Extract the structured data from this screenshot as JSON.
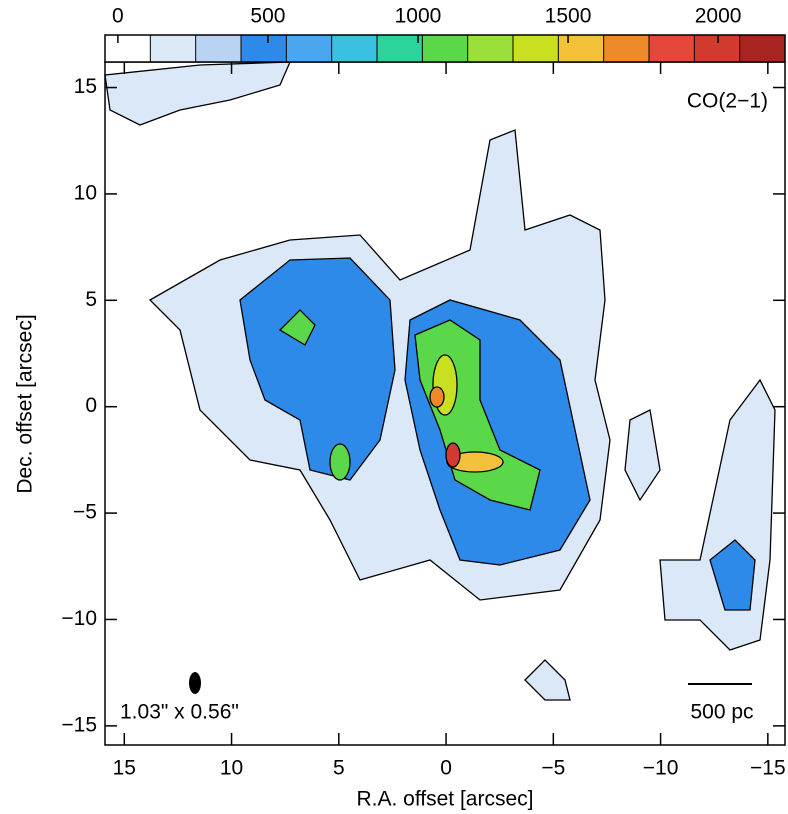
{
  "chart_data": {
    "type": "contour-map",
    "xlabel": "R.A. offset [arcsec]",
    "ylabel": "Dec. offset [arcsec]",
    "xlim": [
      15.9,
      -15.8
    ],
    "ylim": [
      -15.9,
      16.2
    ],
    "xticks": [
      15,
      10,
      5,
      0,
      {
        "value": -5,
        "label": "−5"
      },
      {
        "value": -10,
        "label": "−10"
      },
      {
        "value": -15,
        "label": "−15"
      }
    ],
    "yticks": [
      15,
      10,
      5,
      0,
      {
        "value": -5,
        "label": "−5"
      },
      {
        "value": -10,
        "label": "−10"
      },
      {
        "value": -15,
        "label": "−15"
      }
    ],
    "colorbar": {
      "lim": [
        -43,
        2223
      ],
      "ticks": [
        0,
        500,
        1000,
        1500,
        2000
      ],
      "colors": [
        "#ffffff",
        "#dbe8f8",
        "#b9d4f3",
        "#2e8ae8",
        "#4aa6ef",
        "#3bc0e0",
        "#2cd39a",
        "#5ad84a",
        "#9be03a",
        "#c8e020",
        "#f3c23a",
        "#ef8a2a",
        "#e5473a",
        "#d23a30",
        "#a82420"
      ]
    },
    "annotations": {
      "line": "CO(2−1)",
      "beam": "1.03\" x 0.56\"",
      "scale": "500 pc"
    }
  }
}
